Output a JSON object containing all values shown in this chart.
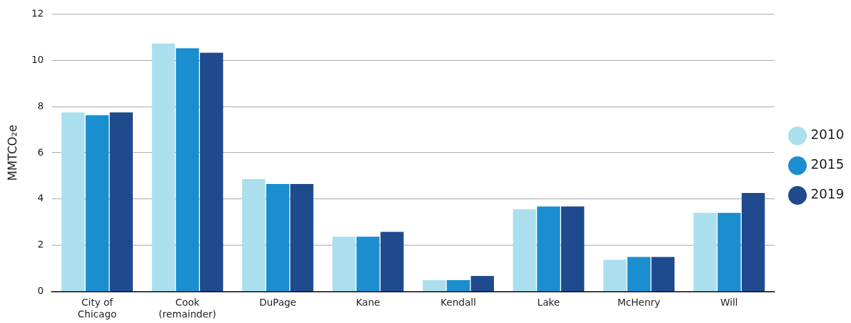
{
  "chart_data": {
    "type": "bar",
    "ylabel": "MMTCO₂e",
    "categories": [
      "City of Chicago",
      "Cook (remainder)",
      "DuPage",
      "Kane",
      "Kendall",
      "Lake",
      "McHenry",
      "Will"
    ],
    "series": [
      {
        "name": "2010",
        "color": "#abdfee",
        "values": [
          7.75,
          10.73,
          4.86,
          2.37,
          0.49,
          3.56,
          1.37,
          3.4
        ]
      },
      {
        "name": "2015",
        "color": "#1b8ed0",
        "values": [
          7.63,
          10.52,
          4.65,
          2.37,
          0.49,
          3.68,
          1.49,
          3.4
        ]
      },
      {
        "name": "2019",
        "color": "#1f4a8e",
        "values": [
          7.75,
          10.33,
          4.65,
          2.58,
          0.67,
          3.68,
          1.49,
          4.26
        ]
      }
    ],
    "ylim": [
      0,
      12
    ],
    "yticks": [
      0,
      2,
      4,
      6,
      8,
      10,
      12
    ],
    "grid": "y",
    "legend": "right"
  }
}
